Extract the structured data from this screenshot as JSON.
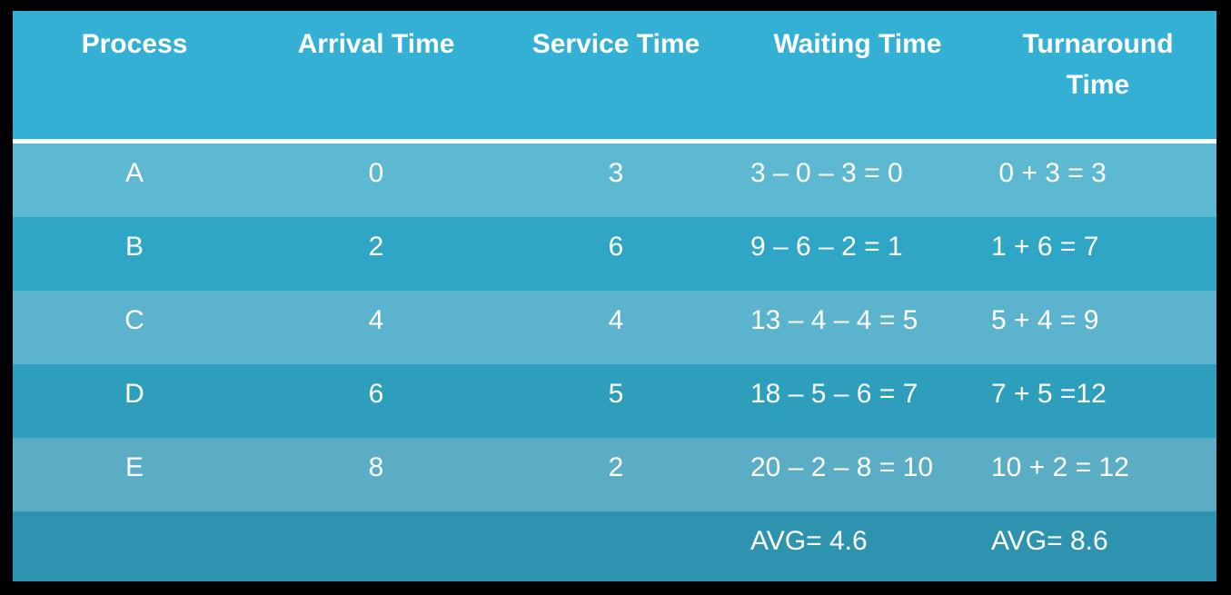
{
  "header": {
    "process": "Process",
    "arrival": "Arrival Time",
    "service": "Service Time",
    "waiting": "Waiting Time",
    "turnaround_line1": "Turnaround",
    "turnaround_line2": "Time"
  },
  "rows": [
    {
      "process": "A",
      "arrival": "0",
      "service": "3",
      "waiting": "3 – 0 – 3 = 0",
      "turnaround": " 0 + 3 = 3"
    },
    {
      "process": "B",
      "arrival": "2",
      "service": "6",
      "waiting": "9 – 6 – 2 = 1",
      "turnaround": "1 + 6 = 7"
    },
    {
      "process": "C",
      "arrival": "4",
      "service": "4",
      "waiting": "13 – 4 – 4 = 5",
      "turnaround": "5 + 4 = 9"
    },
    {
      "process": "D",
      "arrival": "6",
      "service": "5",
      "waiting": "18 – 5 – 6 = 7",
      "turnaround": "7 + 5 =12"
    },
    {
      "process": "E",
      "arrival": "8",
      "service": "2",
      "waiting": "20 – 2 – 8 = 10",
      "turnaround": "10 + 2 = 12"
    }
  ],
  "averages": {
    "waiting": "AVG= 4.6",
    "turnaround": "AVG= 8.6"
  },
  "colors": {
    "header": "#33b0d3",
    "row_a": "#5db8d2",
    "row_b": "#30a6c6",
    "row_c": "#5bb3cd",
    "row_d": "#2d9fbd",
    "row_e": "#5aadc4",
    "avg_row": "#2d93ae"
  }
}
